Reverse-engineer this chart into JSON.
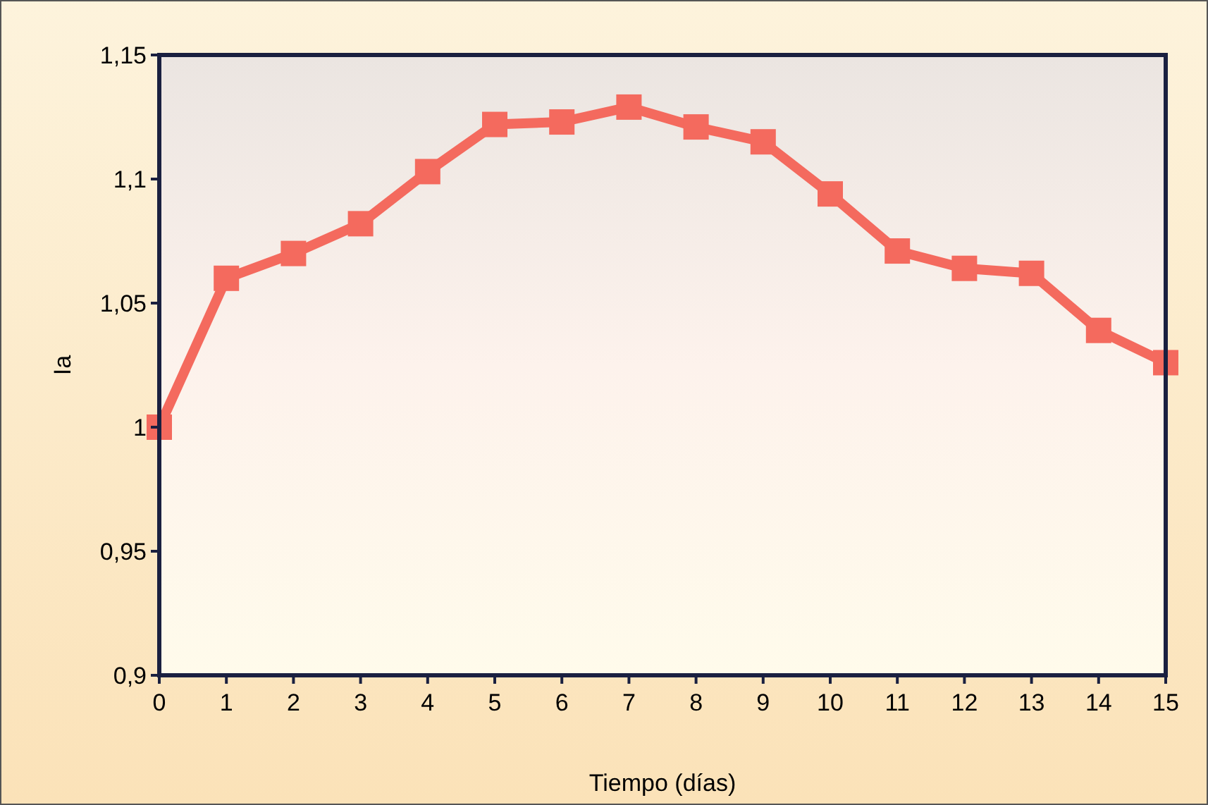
{
  "chart_data": {
    "type": "line",
    "xlabel": "Tiempo (días)",
    "ylabel": "Ia",
    "x": [
      0,
      1,
      2,
      3,
      4,
      5,
      6,
      7,
      8,
      9,
      10,
      11,
      12,
      13,
      14,
      15
    ],
    "series": [
      {
        "color": "#f46a5e",
        "values": [
          1.0,
          1.06,
          1.07,
          1.082,
          1.103,
          1.122,
          1.123,
          1.129,
          1.121,
          1.115,
          1.094,
          1.071,
          1.064,
          1.062,
          1.039,
          1.026
        ]
      }
    ],
    "xlim": [
      0,
      15
    ],
    "xticks": [
      0,
      1,
      2,
      3,
      4,
      5,
      6,
      7,
      8,
      9,
      10,
      11,
      12,
      13,
      14,
      15
    ],
    "ylim": [
      0.9,
      1.15
    ],
    "yticks": [
      {
        "value": 0.9,
        "label": "0,9"
      },
      {
        "value": 0.95,
        "label": "0,95"
      },
      {
        "value": 1,
        "label": "1"
      },
      {
        "value": 1.05,
        "label": "1,05"
      },
      {
        "value": 1.1,
        "label": "1,1"
      },
      {
        "value": 1.15,
        "label": "1,15"
      }
    ],
    "marker": "square",
    "line_style": "solid",
    "grid": false
  }
}
